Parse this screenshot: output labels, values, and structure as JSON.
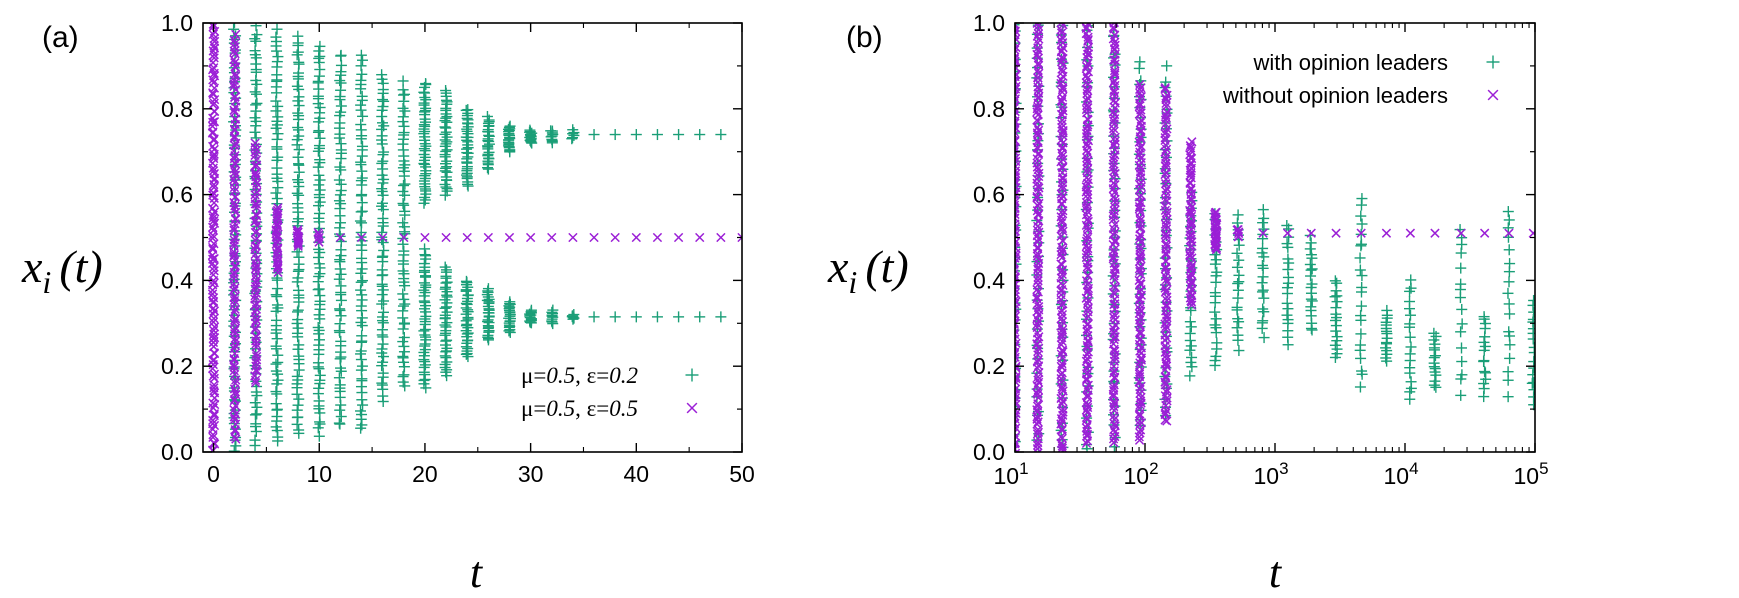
{
  "colors": {
    "green": "#1a9e77",
    "purple": "#9b1fd6",
    "axis": "#000000"
  },
  "chart_data": [
    {
      "panel": "(a)",
      "type": "scatter",
      "xlabel": "t",
      "ylabel": "x_i (t)",
      "ylabel_parts": {
        "main": "x",
        "sub": "i",
        "rest": "(t)"
      },
      "xlim": [
        -1,
        50
      ],
      "ylim": [
        0,
        1
      ],
      "xscale": "linear",
      "x_ticks": [
        0,
        10,
        20,
        30,
        40,
        50
      ],
      "x_tick_labels": [
        "0",
        "10",
        "20",
        "30",
        "40",
        "50"
      ],
      "y_ticks": [
        0,
        0.2,
        0.4,
        0.6,
        0.8,
        1.0
      ],
      "y_tick_labels": [
        "0.0",
        "0.2",
        "0.4",
        "0.6",
        "0.8",
        "1.0"
      ],
      "legend_position": "bottom-right",
      "series": [
        {
          "label_parts": {
            "mu": "μ=",
            "muval": "0.5",
            "sep": ", ",
            "eps": "ε=",
            "epsval": "0.2"
          },
          "marker": "+",
          "color": "#1a9e77",
          "clusters": [
            {
              "x": 2,
              "lo": 0.0,
              "hi": 1.0,
              "n": 80
            },
            {
              "x": 4,
              "lo": 0.02,
              "hi": 0.99,
              "n": 80
            },
            {
              "x": 6,
              "lo": 0.02,
              "hi": 0.98,
              "n": 80
            },
            {
              "x": 8,
              "lo": 0.04,
              "hi": 0.97,
              "n": 80
            },
            {
              "x": 10,
              "lo": 0.04,
              "hi": 0.95,
              "n": 80
            },
            {
              "x": 12,
              "lo": 0.06,
              "hi": 0.93,
              "n": 70
            },
            {
              "x": 14,
              "lo": 0.05,
              "hi": 0.92,
              "n": 70
            },
            {
              "x": 16,
              "lo": 0.12,
              "hi": 0.88,
              "n": 70
            },
            {
              "x": 18,
              "lo": 0.15,
              "hi": 0.86,
              "n": 65
            },
            {
              "x": 20,
              "lo": 0.15,
              "hi": 0.47,
              "n": 45
            },
            {
              "x": 20,
              "lo": 0.58,
              "hi": 0.86,
              "n": 45
            },
            {
              "x": 22,
              "lo": 0.18,
              "hi": 0.43,
              "n": 40
            },
            {
              "x": 22,
              "lo": 0.6,
              "hi": 0.84,
              "n": 40
            },
            {
              "x": 24,
              "lo": 0.22,
              "hi": 0.4,
              "n": 35
            },
            {
              "x": 24,
              "lo": 0.62,
              "hi": 0.8,
              "n": 35
            },
            {
              "x": 26,
              "lo": 0.26,
              "hi": 0.38,
              "n": 28
            },
            {
              "x": 26,
              "lo": 0.66,
              "hi": 0.78,
              "n": 28
            },
            {
              "x": 28,
              "lo": 0.28,
              "hi": 0.35,
              "n": 22
            },
            {
              "x": 28,
              "lo": 0.7,
              "hi": 0.76,
              "n": 22
            },
            {
              "x": 30,
              "lo": 0.3,
              "hi": 0.33,
              "n": 14
            },
            {
              "x": 30,
              "lo": 0.72,
              "hi": 0.75,
              "n": 14
            },
            {
              "x": 32,
              "lo": 0.3,
              "hi": 0.33,
              "n": 10
            },
            {
              "x": 32,
              "lo": 0.72,
              "hi": 0.75,
              "n": 10
            },
            {
              "x": 34,
              "lo": 0.31,
              "hi": 0.32,
              "n": 6
            },
            {
              "x": 34,
              "lo": 0.73,
              "hi": 0.75,
              "n": 6
            },
            {
              "x": 36,
              "lo": 0.315,
              "hi": 0.315,
              "n": 1
            },
            {
              "x": 36,
              "lo": 0.74,
              "hi": 0.74,
              "n": 1
            },
            {
              "x": 38,
              "lo": 0.315,
              "hi": 0.315,
              "n": 1
            },
            {
              "x": 38,
              "lo": 0.74,
              "hi": 0.74,
              "n": 1
            },
            {
              "x": 40,
              "lo": 0.315,
              "hi": 0.315,
              "n": 1
            },
            {
              "x": 40,
              "lo": 0.74,
              "hi": 0.74,
              "n": 1
            },
            {
              "x": 42,
              "lo": 0.315,
              "hi": 0.315,
              "n": 1
            },
            {
              "x": 42,
              "lo": 0.74,
              "hi": 0.74,
              "n": 1
            },
            {
              "x": 44,
              "lo": 0.315,
              "hi": 0.315,
              "n": 1
            },
            {
              "x": 44,
              "lo": 0.74,
              "hi": 0.74,
              "n": 1
            },
            {
              "x": 46,
              "lo": 0.315,
              "hi": 0.315,
              "n": 1
            },
            {
              "x": 46,
              "lo": 0.74,
              "hi": 0.74,
              "n": 1
            },
            {
              "x": 48,
              "lo": 0.315,
              "hi": 0.315,
              "n": 1
            },
            {
              "x": 48,
              "lo": 0.74,
              "hi": 0.74,
              "n": 1
            }
          ]
        },
        {
          "label_parts": {
            "mu": "μ=",
            "muval": "0.5",
            "sep": ", ",
            "eps": "ε=",
            "epsval": "0.5"
          },
          "marker": "x",
          "color": "#9b1fd6",
          "clusters": [
            {
              "x": 0,
              "lo": 0.0,
              "hi": 1.0,
              "n": 120
            },
            {
              "x": 2,
              "lo": 0.03,
              "hi": 0.97,
              "n": 110
            },
            {
              "x": 4,
              "lo": 0.16,
              "hi": 0.72,
              "n": 70
            },
            {
              "x": 6,
              "lo": 0.42,
              "hi": 0.57,
              "n": 30
            },
            {
              "x": 8,
              "lo": 0.48,
              "hi": 0.52,
              "n": 12
            },
            {
              "x": 10,
              "lo": 0.49,
              "hi": 0.51,
              "n": 5
            },
            {
              "x": 12,
              "lo": 0.5,
              "hi": 0.5,
              "n": 1
            },
            {
              "x": 14,
              "lo": 0.5,
              "hi": 0.5,
              "n": 1
            },
            {
              "x": 16,
              "lo": 0.5,
              "hi": 0.5,
              "n": 1
            },
            {
              "x": 18,
              "lo": 0.5,
              "hi": 0.5,
              "n": 1
            },
            {
              "x": 20,
              "lo": 0.5,
              "hi": 0.5,
              "n": 1
            },
            {
              "x": 22,
              "lo": 0.5,
              "hi": 0.5,
              "n": 1
            },
            {
              "x": 24,
              "lo": 0.5,
              "hi": 0.5,
              "n": 1
            },
            {
              "x": 26,
              "lo": 0.5,
              "hi": 0.5,
              "n": 1
            },
            {
              "x": 28,
              "lo": 0.5,
              "hi": 0.5,
              "n": 1
            },
            {
              "x": 30,
              "lo": 0.5,
              "hi": 0.5,
              "n": 1
            },
            {
              "x": 32,
              "lo": 0.5,
              "hi": 0.5,
              "n": 1
            },
            {
              "x": 34,
              "lo": 0.5,
              "hi": 0.5,
              "n": 1
            },
            {
              "x": 36,
              "lo": 0.5,
              "hi": 0.5,
              "n": 1
            },
            {
              "x": 38,
              "lo": 0.5,
              "hi": 0.5,
              "n": 1
            },
            {
              "x": 40,
              "lo": 0.5,
              "hi": 0.5,
              "n": 1
            },
            {
              "x": 42,
              "lo": 0.5,
              "hi": 0.5,
              "n": 1
            },
            {
              "x": 44,
              "lo": 0.5,
              "hi": 0.5,
              "n": 1
            },
            {
              "x": 46,
              "lo": 0.5,
              "hi": 0.5,
              "n": 1
            },
            {
              "x": 48,
              "lo": 0.5,
              "hi": 0.5,
              "n": 1
            },
            {
              "x": 50,
              "lo": 0.5,
              "hi": 0.5,
              "n": 1
            }
          ]
        }
      ]
    },
    {
      "panel": "(b)",
      "type": "scatter",
      "xlabel": "t",
      "ylabel": "x_i (t)",
      "ylabel_parts": {
        "main": "x",
        "sub": "i",
        "rest": "(t)"
      },
      "xlim": [
        10,
        100000
      ],
      "ylim": [
        0,
        1
      ],
      "xscale": "log",
      "x_ticks": [
        10,
        100,
        1000,
        10000,
        100000
      ],
      "x_tick_labels": [
        {
          "base": "10",
          "exp": "1"
        },
        {
          "base": "10",
          "exp": "2"
        },
        {
          "base": "10",
          "exp": "3"
        },
        {
          "base": "10",
          "exp": "4"
        },
        {
          "base": "10",
          "exp": "5"
        }
      ],
      "y_ticks": [
        0,
        0.2,
        0.4,
        0.6,
        0.8,
        1.0
      ],
      "y_tick_labels": [
        "0.0",
        "0.2",
        "0.4",
        "0.6",
        "0.8",
        "1.0"
      ],
      "legend_position": "top-right",
      "series": [
        {
          "name": "with opinion leaders",
          "marker": "+",
          "color": "#1a9e77",
          "clusters": [
            {
              "x": 10,
              "lo": 0.0,
              "hi": 1.0,
              "n": 40
            },
            {
              "x": 15,
              "lo": 0.0,
              "hi": 1.0,
              "n": 40
            },
            {
              "x": 23,
              "lo": 0.0,
              "hi": 1.0,
              "n": 40
            },
            {
              "x": 36,
              "lo": 0.0,
              "hi": 1.0,
              "n": 40
            },
            {
              "x": 58,
              "lo": 0.02,
              "hi": 0.98,
              "n": 45
            },
            {
              "x": 92,
              "lo": 0.06,
              "hi": 0.91,
              "n": 45
            },
            {
              "x": 145,
              "lo": 0.08,
              "hi": 0.89,
              "n": 40
            },
            {
              "x": 225,
              "lo": 0.18,
              "hi": 0.6,
              "n": 30
            },
            {
              "x": 350,
              "lo": 0.2,
              "hi": 0.55,
              "n": 25
            },
            {
              "x": 520,
              "lo": 0.24,
              "hi": 0.55,
              "n": 22
            },
            {
              "x": 810,
              "lo": 0.27,
              "hi": 0.56,
              "n": 22
            },
            {
              "x": 1250,
              "lo": 0.25,
              "hi": 0.53,
              "n": 20
            },
            {
              "x": 1900,
              "lo": 0.28,
              "hi": 0.5,
              "n": 20
            },
            {
              "x": 2950,
              "lo": 0.22,
              "hi": 0.4,
              "n": 18
            },
            {
              "x": 4600,
              "lo": 0.15,
              "hi": 0.6,
              "n": 22
            },
            {
              "x": 7200,
              "lo": 0.21,
              "hi": 0.33,
              "n": 16
            },
            {
              "x": 11000,
              "lo": 0.12,
              "hi": 0.4,
              "n": 18
            },
            {
              "x": 17000,
              "lo": 0.15,
              "hi": 0.28,
              "n": 16
            },
            {
              "x": 27000,
              "lo": 0.14,
              "hi": 0.53,
              "n": 16
            },
            {
              "x": 41000,
              "lo": 0.13,
              "hi": 0.32,
              "n": 16
            },
            {
              "x": 63000,
              "lo": 0.14,
              "hi": 0.57,
              "n": 18
            },
            {
              "x": 97000,
              "lo": 0.11,
              "hi": 0.36,
              "n": 18
            }
          ]
        },
        {
          "name": "without opinion leaders",
          "marker": "x",
          "color": "#9b1fd6",
          "clusters": [
            {
              "x": 10,
              "lo": 0.0,
              "hi": 1.0,
              "n": 130
            },
            {
              "x": 15,
              "lo": 0.0,
              "hi": 1.0,
              "n": 130
            },
            {
              "x": 23,
              "lo": 0.0,
              "hi": 1.0,
              "n": 130
            },
            {
              "x": 36,
              "lo": 0.02,
              "hi": 1.0,
              "n": 130
            },
            {
              "x": 58,
              "lo": 0.02,
              "hi": 1.0,
              "n": 120
            },
            {
              "x": 92,
              "lo": 0.03,
              "hi": 0.86,
              "n": 110
            },
            {
              "x": 145,
              "lo": 0.07,
              "hi": 0.85,
              "n": 100
            },
            {
              "x": 225,
              "lo": 0.34,
              "hi": 0.72,
              "n": 60
            },
            {
              "x": 350,
              "lo": 0.47,
              "hi": 0.56,
              "n": 25
            },
            {
              "x": 520,
              "lo": 0.5,
              "hi": 0.52,
              "n": 6
            },
            {
              "x": 810,
              "lo": 0.51,
              "hi": 0.51,
              "n": 1
            },
            {
              "x": 1250,
              "lo": 0.51,
              "hi": 0.51,
              "n": 1
            },
            {
              "x": 1900,
              "lo": 0.51,
              "hi": 0.51,
              "n": 1
            },
            {
              "x": 2950,
              "lo": 0.51,
              "hi": 0.51,
              "n": 1
            },
            {
              "x": 4600,
              "lo": 0.51,
              "hi": 0.51,
              "n": 1
            },
            {
              "x": 7200,
              "lo": 0.51,
              "hi": 0.51,
              "n": 1
            },
            {
              "x": 11000,
              "lo": 0.51,
              "hi": 0.51,
              "n": 1
            },
            {
              "x": 17000,
              "lo": 0.51,
              "hi": 0.51,
              "n": 1
            },
            {
              "x": 27000,
              "lo": 0.51,
              "hi": 0.51,
              "n": 1
            },
            {
              "x": 41000,
              "lo": 0.51,
              "hi": 0.51,
              "n": 1
            },
            {
              "x": 63000,
              "lo": 0.51,
              "hi": 0.51,
              "n": 1
            },
            {
              "x": 97000,
              "lo": 0.51,
              "hi": 0.51,
              "n": 1
            }
          ]
        }
      ]
    }
  ]
}
